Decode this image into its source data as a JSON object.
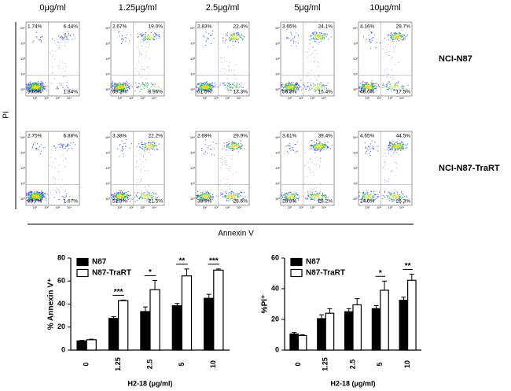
{
  "flow": {
    "concentrations": [
      "0μg/ml",
      "1.25μg/ml",
      "2.5μg/ml",
      "5μg/ml",
      "10μg/ml"
    ],
    "decades": [
      "10⁰",
      "10¹",
      "10²",
      "10³",
      "10⁴"
    ],
    "y_label": "PI",
    "x_label": "Annexin V",
    "rows": [
      {
        "name": "NCI-N87",
        "panels": [
          [
            "1.74%",
            "6.44%",
            "90.0%",
            "1.84%"
          ],
          [
            "2.67%",
            "19.0%",
            "69.3%",
            "8.96%"
          ],
          [
            "2.83%",
            "22.4%",
            "61.5%",
            "13.3%"
          ],
          [
            "3.65%",
            "24.1%",
            "56.8%",
            "15.4%"
          ],
          [
            "4.16%",
            "29.7%",
            "48.6%",
            "17.5%"
          ]
        ]
      },
      {
        "name": "NCI-N87-TraRT",
        "panels": [
          [
            "2.75%",
            "6.88%",
            "88.7%",
            "1.67%"
          ],
          [
            "3.38%",
            "22.2%",
            "52.9%",
            "21.5%"
          ],
          [
            "2.69%",
            "29.9%",
            "38.9%",
            "28.6%"
          ],
          [
            "3.61%",
            "39.4%",
            "28.8%",
            "28.2%"
          ],
          [
            "4.65%",
            "44.5%",
            "24.6%",
            "26.3%"
          ]
        ]
      }
    ]
  },
  "chart_data": [
    {
      "type": "bar",
      "y_label": "% Annexin V⁺",
      "x_label": "H2-18 (μg/ml)",
      "categories": [
        "0",
        "1.25",
        "2.5",
        "5",
        "10"
      ],
      "ylim": [
        0,
        80
      ],
      "yticks": [
        0,
        20,
        40,
        60,
        80
      ],
      "series": [
        {
          "name": "N87",
          "color": "#000000",
          "values": [
            8,
            27.5,
            33.5,
            38.5,
            45
          ],
          "errors": [
            0.5,
            1.5,
            4,
            2,
            3.5
          ]
        },
        {
          "name": "N87-TraRT",
          "color": "#ffffff",
          "values": [
            9,
            43,
            52.5,
            64.5,
            69.5
          ],
          "errors": [
            0.5,
            0.5,
            8,
            6,
            1
          ]
        }
      ],
      "significance": [
        null,
        "***",
        "*",
        "**",
        "***"
      ]
    },
    {
      "type": "bar",
      "y_label": "%PI⁺",
      "x_label": "H2-18 (μg/ml)",
      "categories": [
        "0",
        "1.25",
        "2.5",
        "5",
        "10"
      ],
      "ylim": [
        0,
        60
      ],
      "yticks": [
        0,
        20,
        40,
        60
      ],
      "series": [
        {
          "name": "N87",
          "color": "#000000",
          "values": [
            10.5,
            20.5,
            25,
            27,
            32.5
          ],
          "errors": [
            1,
            2.5,
            2,
            2,
            2
          ]
        },
        {
          "name": "N87-TraRT",
          "color": "#ffffff",
          "values": [
            9.5,
            24,
            29.5,
            39,
            45.5
          ],
          "errors": [
            0.5,
            3,
            4,
            6,
            4
          ]
        }
      ],
      "significance": [
        null,
        null,
        null,
        "*",
        "**"
      ]
    }
  ]
}
